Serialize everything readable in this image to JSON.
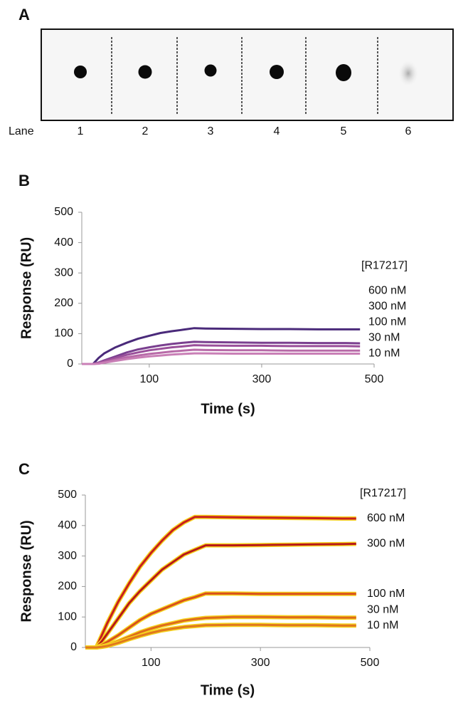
{
  "blot": {
    "panel": "A",
    "lane_label": "Lane",
    "lanes": [
      "1",
      "2",
      "3",
      "4",
      "5",
      "6"
    ]
  },
  "chart_data": [
    {
      "type": "line",
      "panel": "B",
      "xlabel": "Time (s)",
      "ylabel": "Response (RU)",
      "legend_title": "[R17217]",
      "x": [
        -20,
        0,
        10,
        20,
        40,
        60,
        80,
        100,
        120,
        140,
        160,
        180,
        200,
        250,
        300,
        350,
        400,
        450,
        475
      ],
      "series": [
        {
          "name": "600 nM",
          "color": "#4a2a7a",
          "values": [
            0,
            0,
            20,
            35,
            55,
            70,
            83,
            93,
            102,
            108,
            113,
            118,
            117,
            116,
            115,
            115,
            114,
            114,
            114
          ]
        },
        {
          "name": "300 nM",
          "color": "#7a3f8f",
          "values": [
            0,
            0,
            5,
            12,
            25,
            38,
            48,
            55,
            61,
            66,
            70,
            73,
            72,
            71,
            70,
            70,
            69,
            69,
            68
          ]
        },
        {
          "name": "100 nM",
          "color": "#9a4f9a",
          "values": [
            0,
            0,
            4,
            10,
            20,
            30,
            38,
            45,
            50,
            55,
            58,
            62,
            61,
            60,
            60,
            59,
            59,
            59,
            58
          ]
        },
        {
          "name": "30 nM",
          "color": "#b86aa8",
          "values": [
            0,
            0,
            2,
            6,
            14,
            22,
            28,
            33,
            37,
            41,
            44,
            47,
            46,
            45,
            45,
            44,
            44,
            44,
            44
          ]
        },
        {
          "name": "10 nM",
          "color": "#c97fb6",
          "values": [
            0,
            0,
            1,
            4,
            10,
            16,
            21,
            25,
            28,
            31,
            33,
            35,
            35,
            34,
            34,
            34,
            34,
            34,
            34
          ]
        }
      ],
      "xlim": [
        -20,
        500
      ],
      "xticks": [
        100,
        300,
        500
      ],
      "ylim": [
        0,
        500
      ],
      "yticks": [
        0,
        100,
        200,
        300,
        400,
        500
      ]
    },
    {
      "type": "line",
      "panel": "C",
      "xlabel": "Time (s)",
      "ylabel": "Response (RU)",
      "legend_title": "[R17217]",
      "x": [
        -20,
        0,
        10,
        20,
        40,
        60,
        80,
        100,
        120,
        140,
        160,
        180,
        200,
        250,
        300,
        350,
        400,
        450,
        475
      ],
      "series": [
        {
          "name": "600 nM",
          "color": "#c81e1e",
          "values": [
            0,
            0,
            40,
            80,
            150,
            210,
            265,
            310,
            350,
            385,
            410,
            428,
            428,
            427,
            426,
            425,
            424,
            423,
            423
          ]
        },
        {
          "name": "300 nM",
          "color": "#b81818",
          "values": [
            0,
            0,
            20,
            45,
            95,
            145,
            185,
            220,
            255,
            280,
            305,
            320,
            335,
            335,
            336,
            337,
            338,
            339,
            340
          ]
        },
        {
          "name": "100 nM",
          "color": "#d9501c",
          "values": [
            0,
            0,
            8,
            18,
            40,
            65,
            90,
            110,
            125,
            140,
            155,
            165,
            177,
            177,
            176,
            176,
            176,
            176,
            176
          ]
        },
        {
          "name": "30 nM",
          "color": "#de6a1c",
          "values": [
            0,
            0,
            3,
            8,
            20,
            35,
            50,
            62,
            72,
            80,
            88,
            93,
            97,
            100,
            100,
            99,
            99,
            98,
            98
          ]
        },
        {
          "name": "10 nM",
          "color": "#e0781e",
          "values": [
            0,
            0,
            2,
            5,
            15,
            27,
            38,
            48,
            56,
            62,
            67,
            70,
            73,
            74,
            74,
            73,
            73,
            72,
            72
          ]
        }
      ],
      "xlim": [
        -20,
        500
      ],
      "xticks": [
        100,
        300,
        500
      ],
      "ylim": [
        0,
        500
      ],
      "yticks": [
        0,
        100,
        200,
        300,
        400,
        500
      ]
    }
  ]
}
